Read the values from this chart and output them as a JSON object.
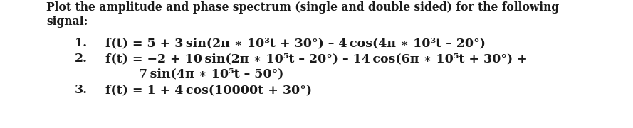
{
  "background_color": "#ffffff",
  "text_color": "#1a1a1a",
  "title_line1": "Plot the amplitude and phase spectrum (single and double sided) for the following",
  "title_line2": "signal:",
  "fs_title": 11.2,
  "fs_body": 12.5,
  "line1_num": "1.",
  "line1_text": "f(t) = 5 + 3 sin(2π ∗ 10³t + 30°) – 4 cos(4π ∗ 10³t – 20°)",
  "line2_num": "2.",
  "line2_text": "f(t) = −2 + 10 sin(2π ∗ 10⁵t – 20°) – 14 cos(6π ∗ 10⁵t + 30°) +",
  "line2b_text": "7 sin(4π ∗ 10⁵t – 50°)",
  "line3_num": "3.",
  "line3_text": "f(t) = 1 + 4 cos(10000t + 30°)"
}
